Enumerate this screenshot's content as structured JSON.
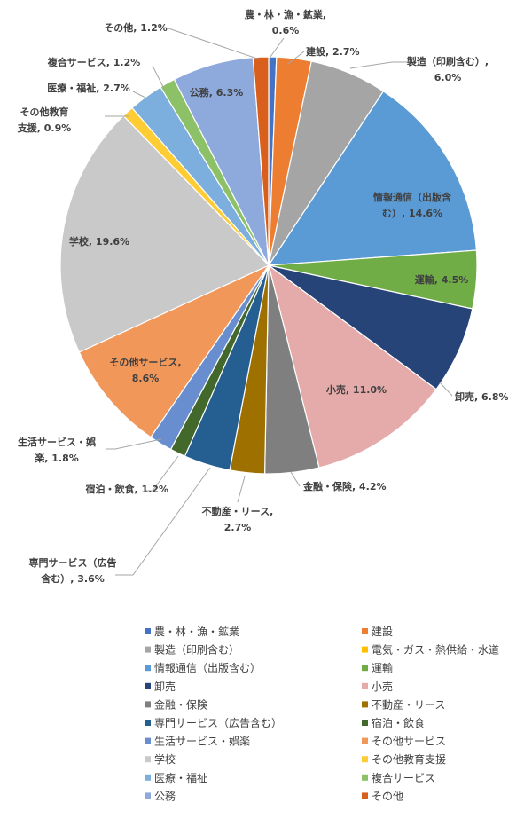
{
  "chart_data": {
    "type": "pie",
    "title": "",
    "legend_position": "bottom",
    "slices": [
      {
        "name": "農・林・漁・鉱業",
        "value": 0.6,
        "value_label": "0.6%",
        "color": "#4472C4"
      },
      {
        "name": "建設",
        "value": 2.7,
        "value_label": "2.7%",
        "color": "#ED7D31"
      },
      {
        "name": "製造（印刷含む）",
        "value": 6.0,
        "value_label": "6.0%",
        "color": "#A5A5A5"
      },
      {
        "name": "電気・ガス・熱供給・水道",
        "value": 0.0,
        "value_label": "",
        "color": "#FFC000"
      },
      {
        "name": "情報通信（出版含む）",
        "value": 14.6,
        "value_label": "14.6%",
        "color": "#5B9BD5"
      },
      {
        "name": "運輸",
        "value": 4.5,
        "value_label": "4.5%",
        "color": "#70AD47"
      },
      {
        "name": "卸売",
        "value": 6.8,
        "value_label": "6.8%",
        "color": "#264478"
      },
      {
        "name": "小売",
        "value": 11.0,
        "value_label": "11.0%",
        "color": "#E5ABAB"
      },
      {
        "name": "金融・保険",
        "value": 4.2,
        "value_label": "4.2%",
        "color": "#7F7F7F"
      },
      {
        "name": "不動産・リース",
        "value": 2.7,
        "value_label": "2.7%",
        "color": "#9E7000"
      },
      {
        "name": "専門サービス（広告含む）",
        "value": 3.6,
        "value_label": "3.6%",
        "color": "#255E91"
      },
      {
        "name": "宿泊・飲食",
        "value": 1.2,
        "value_label": "1.2%",
        "color": "#43682B"
      },
      {
        "name": "生活サービス・娯楽",
        "value": 1.8,
        "value_label": "1.8%",
        "color": "#698ED0"
      },
      {
        "name": "その他サービス",
        "value": 8.6,
        "value_label": "8.6%",
        "color": "#F1975A"
      },
      {
        "name": "学校",
        "value": 19.6,
        "value_label": "19.6%",
        "color": "#C9C9C9"
      },
      {
        "name": "その他教育支援",
        "value": 0.9,
        "value_label": "0.9%",
        "color": "#FFCD33"
      },
      {
        "name": "医療・福祉",
        "value": 2.7,
        "value_label": "2.7%",
        "color": "#7CAFDD"
      },
      {
        "name": "複合サービス",
        "value": 1.2,
        "value_label": "1.2%",
        "color": "#8CC168"
      },
      {
        "name": "公務",
        "value": 6.3,
        "value_label": "6.3%",
        "color": "#8EA9DB"
      },
      {
        "name": "その他",
        "value": 1.2,
        "value_label": "1.2%",
        "color": "#D9601C"
      }
    ],
    "data_labels": [
      {
        "slice": 0,
        "lines": [
          "農・林・漁・鉱業,",
          "0.6%"
        ]
      },
      {
        "slice": 1,
        "lines": [
          "建設, 2.7%"
        ]
      },
      {
        "slice": 2,
        "lines": [
          "製造（印刷含む）,",
          "6.0%"
        ]
      },
      {
        "slice": 4,
        "lines": [
          "情報通信（出版含",
          "む）, 14.6%"
        ]
      },
      {
        "slice": 5,
        "lines": [
          "運輸, 4.5%"
        ]
      },
      {
        "slice": 6,
        "lines": [
          "卸売, 6.8%"
        ]
      },
      {
        "slice": 7,
        "lines": [
          "小売, 11.0%"
        ]
      },
      {
        "slice": 8,
        "lines": [
          "金融・保険, 4.2%"
        ]
      },
      {
        "slice": 9,
        "lines": [
          "不動産・リース,",
          "2.7%"
        ]
      },
      {
        "slice": 10,
        "lines": [
          "専門サービス（広告",
          "含む）, 3.6%"
        ]
      },
      {
        "slice": 11,
        "lines": [
          "宿泊・飲食, 1.2%"
        ]
      },
      {
        "slice": 12,
        "lines": [
          "生活サービス・娯",
          "楽, 1.8%"
        ]
      },
      {
        "slice": 13,
        "lines": [
          "その他サービス,",
          "8.6%"
        ]
      },
      {
        "slice": 14,
        "lines": [
          "学校, 19.6%"
        ]
      },
      {
        "slice": 15,
        "lines": [
          "その他教育",
          "支援, 0.9%"
        ]
      },
      {
        "slice": 16,
        "lines": [
          "医療・福祉, 2.7%"
        ]
      },
      {
        "slice": 17,
        "lines": [
          "複合サービス, 1.2%"
        ]
      },
      {
        "slice": 18,
        "lines": [
          "公務, 6.3%"
        ]
      },
      {
        "slice": 19,
        "lines": [
          "その他, 1.2%"
        ]
      }
    ]
  }
}
